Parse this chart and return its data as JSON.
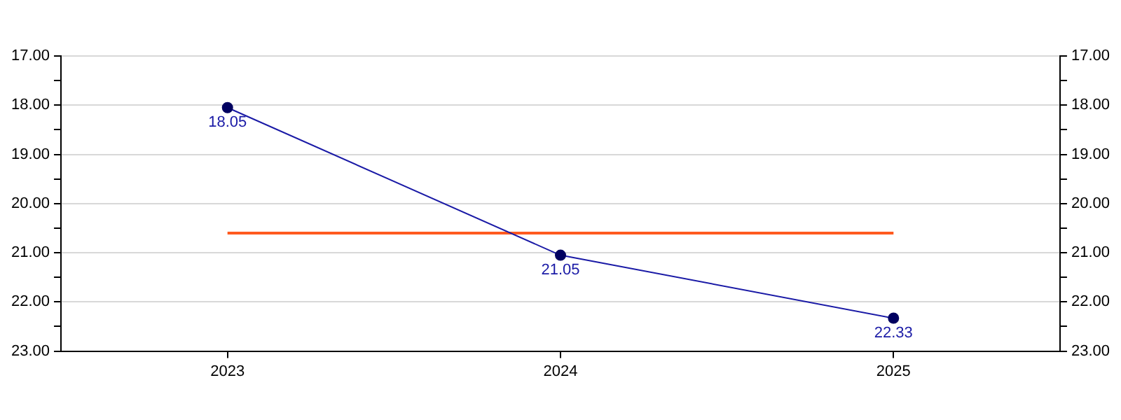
{
  "chart_data": {
    "type": "line",
    "categories": [
      "2023",
      "2024",
      "2025"
    ],
    "series": [
      {
        "color": "#1a1aa6",
        "values": [
          18.05,
          21.05,
          22.33
        ],
        "marker": "circle",
        "value_labels": [
          "18.05",
          "21.05",
          "22.33"
        ]
      },
      {
        "color": "#ff5a1f",
        "values": [
          20.6,
          20.6,
          20.6
        ],
        "marker": "none"
      }
    ],
    "ylim": [
      23,
      17
    ],
    "yticks": [
      {
        "value": 17,
        "label": "17.00"
      },
      {
        "value": 17.5,
        "label": null
      },
      {
        "value": 18,
        "label": "18.00"
      },
      {
        "value": 18.5,
        "label": null
      },
      {
        "value": 19,
        "label": "19.00"
      },
      {
        "value": 19.5,
        "label": null
      },
      {
        "value": 20,
        "label": "20.00"
      },
      {
        "value": 20.5,
        "label": null
      },
      {
        "value": 21,
        "label": "21.00"
      },
      {
        "value": 21.5,
        "label": null
      },
      {
        "value": 22,
        "label": "22.00"
      },
      {
        "value": 22.5,
        "label": null
      },
      {
        "value": 23,
        "label": "23.00"
      }
    ],
    "y2lim": [
      23,
      17
    ],
    "y2ticks": [
      {
        "value": 17,
        "label": "17.00"
      },
      {
        "value": 17.5,
        "label": null
      },
      {
        "value": 18,
        "label": "18.00"
      },
      {
        "value": 18.5,
        "label": null
      },
      {
        "value": 19,
        "label": "19.00"
      },
      {
        "value": 19.5,
        "label": null
      },
      {
        "value": 20,
        "label": "20.00"
      },
      {
        "value": 20.5,
        "label": null
      },
      {
        "value": 21,
        "label": "21.00"
      },
      {
        "value": 21.5,
        "label": null
      },
      {
        "value": 22,
        "label": "22.00"
      },
      {
        "value": 22.5,
        "label": null
      },
      {
        "value": 23,
        "label": "23.00"
      }
    ],
    "grid": "y",
    "legend": false
  }
}
